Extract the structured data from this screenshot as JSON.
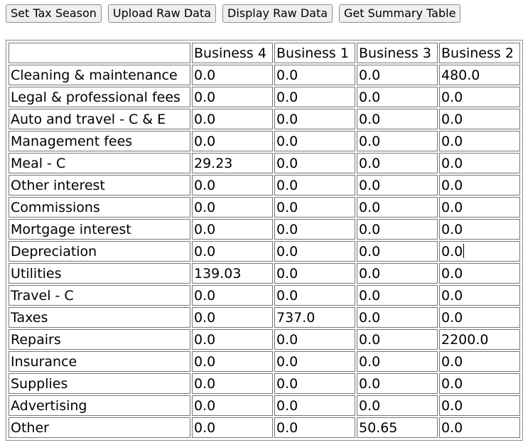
{
  "toolbar": {
    "buttons": [
      {
        "label": "Set Tax Season"
      },
      {
        "label": "Upload Raw Data"
      },
      {
        "label": "Display Raw Data"
      },
      {
        "label": "Get Summary Table"
      }
    ]
  },
  "summary_table": {
    "corner": "",
    "columns": [
      "Business 4",
      "Business 1",
      "Business 3",
      "Business 2"
    ],
    "rows": [
      {
        "label": "Cleaning & maintenance",
        "values": [
          "0.0",
          "0.0",
          "0.0",
          "480.0"
        ]
      },
      {
        "label": "Legal & professional fees",
        "values": [
          "0.0",
          "0.0",
          "0.0",
          "0.0"
        ]
      },
      {
        "label": "Auto and travel - C & E",
        "values": [
          "0.0",
          "0.0",
          "0.0",
          "0.0"
        ]
      },
      {
        "label": "Management fees",
        "values": [
          "0.0",
          "0.0",
          "0.0",
          "0.0"
        ]
      },
      {
        "label": "Meal - C",
        "values": [
          "29.23",
          "0.0",
          "0.0",
          "0.0"
        ]
      },
      {
        "label": "Other interest",
        "values": [
          "0.0",
          "0.0",
          "0.0",
          "0.0"
        ]
      },
      {
        "label": "Commissions",
        "values": [
          "0.0",
          "0.0",
          "0.0",
          "0.0"
        ]
      },
      {
        "label": "Mortgage interest",
        "values": [
          "0.0",
          "0.0",
          "0.0",
          "0.0"
        ]
      },
      {
        "label": "Depreciation",
        "values": [
          "0.0",
          "0.0",
          "0.0",
          "0.0"
        ]
      },
      {
        "label": "Utilities",
        "values": [
          "139.03",
          "0.0",
          "0.0",
          "0.0"
        ]
      },
      {
        "label": "Travel - C",
        "values": [
          "0.0",
          "0.0",
          "0.0",
          "0.0"
        ]
      },
      {
        "label": "Taxes",
        "values": [
          "0.0",
          "737.0",
          "0.0",
          "0.0"
        ]
      },
      {
        "label": "Repairs",
        "values": [
          "0.0",
          "0.0",
          "0.0",
          "2200.0"
        ]
      },
      {
        "label": "Insurance",
        "values": [
          "0.0",
          "0.0",
          "0.0",
          "0.0"
        ]
      },
      {
        "label": "Supplies",
        "values": [
          "0.0",
          "0.0",
          "0.0",
          "0.0"
        ]
      },
      {
        "label": "Advertising",
        "values": [
          "0.0",
          "0.0",
          "0.0",
          "0.0"
        ]
      },
      {
        "label": "Other",
        "values": [
          "0.0",
          "0.0",
          "50.65",
          "0.0"
        ]
      }
    ]
  }
}
